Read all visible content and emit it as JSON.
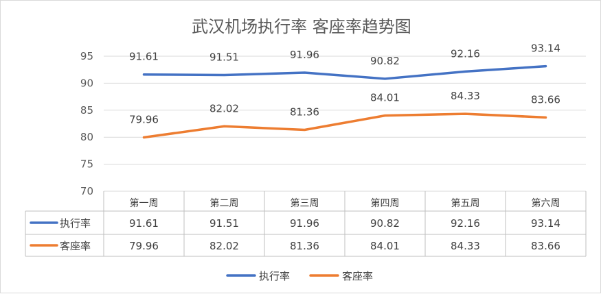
{
  "chart_data": {
    "type": "line",
    "title": "武汉机场执行率 客座率趋势图",
    "categories": [
      "第一周",
      "第二周",
      "第三周",
      "第四周",
      "第五周",
      "第六周"
    ],
    "series": [
      {
        "name": "执行率",
        "color": "#4472c4",
        "values": [
          91.61,
          91.51,
          91.96,
          90.82,
          92.16,
          93.14
        ]
      },
      {
        "name": "客座率",
        "color": "#ed7d31",
        "values": [
          79.96,
          82.02,
          81.36,
          84.01,
          84.33,
          83.66
        ]
      }
    ],
    "ylim": [
      70,
      95
    ],
    "yticks": [
      70,
      75,
      80,
      85,
      90,
      95
    ],
    "grid": true,
    "data_labels": true,
    "data_table": true,
    "legend": "bottom",
    "xlabel": "",
    "ylabel": ""
  }
}
